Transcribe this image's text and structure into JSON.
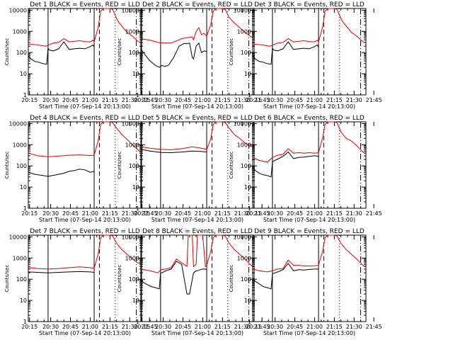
{
  "figure": {
    "ylabel": "Counts/sec",
    "xlabel_prefix": "Start Time (",
    "start_time": "07-Sep-14 20:13:00",
    "xlabel_suffix": ")",
    "x_ticks": [
      "20:15",
      "20:30",
      "20:45",
      "21:00",
      "21:15",
      "21:30",
      "21:45"
    ],
    "y_ticks": [
      "1",
      "10",
      "100",
      "1000",
      "10000"
    ],
    "colors": {
      "events": "#000000",
      "lld": "#e00000"
    }
  },
  "chart_data": [
    {
      "type": "line",
      "title": "Det  1  BLACK = Events, RED = LLD",
      "xlim": [
        13,
        99
      ],
      "ylim": [
        1,
        12000
      ],
      "yscale": "log",
      "xlabel": "Start Time (07-Sep-14 20:13:00)",
      "ylabel": "Counts/sec",
      "vlines": {
        "solid": [
          28,
          63
        ],
        "dashed": [
          67
        ],
        "dotted": [
          79
        ],
        "dashdot": [
          95
        ]
      },
      "series": [
        {
          "name": "LLD",
          "color": "red",
          "x": [
            13,
            20,
            26,
            28,
            32,
            36,
            40,
            44,
            48,
            52,
            56,
            60,
            62,
            63,
            66,
            68,
            70,
            75,
            77,
            80,
            82,
            85,
            88,
            92,
            96,
            98
          ],
          "y": [
            250,
            230,
            200,
            220,
            280,
            300,
            450,
            320,
            340,
            360,
            330,
            320,
            380,
            320,
            1500,
            9000,
            12000,
            12000,
            11000,
            4000,
            2500,
            1500,
            900,
            600,
            350,
            300
          ]
        },
        {
          "name": "Events",
          "color": "black",
          "x": [
            13,
            15,
            18,
            21,
            24,
            27,
            28,
            29,
            32,
            36,
            40,
            44,
            48,
            52,
            56,
            58,
            60,
            62,
            63
          ],
          "y": [
            70,
            50,
            38,
            35,
            30,
            28,
            160,
            130,
            120,
            150,
            320,
            140,
            150,
            160,
            150,
            170,
            190,
            230,
            180
          ]
        }
      ]
    },
    {
      "type": "line",
      "title": "Det  2  BLACK = Events, RED = LLD",
      "xlim": [
        13,
        99
      ],
      "ylim": [
        1,
        12000
      ],
      "yscale": "log",
      "xlabel": "Start Time (07-Sep-14 20:13:00)",
      "ylabel": "Counts/sec",
      "vlines": {
        "solid": [
          28,
          63
        ],
        "dashed": [
          67
        ],
        "dotted": [
          79
        ],
        "dashdot": [
          95
        ]
      },
      "series": [
        {
          "name": "LLD",
          "color": "red",
          "x": [
            13,
            20,
            26,
            30,
            36,
            40,
            44,
            48,
            52,
            53,
            55,
            57,
            59,
            61,
            63,
            66,
            68,
            70,
            74,
            77,
            80,
            84,
            88,
            92,
            96,
            98
          ],
          "y": [
            450,
            380,
            300,
            280,
            280,
            350,
            450,
            500,
            550,
            400,
            1000,
            1500,
            700,
            800,
            600,
            2000,
            9000,
            12000,
            12000,
            11000,
            4500,
            2500,
            1500,
            900,
            600,
            500
          ]
        },
        {
          "name": "Events",
          "color": "black",
          "x": [
            13,
            16,
            20,
            24,
            27,
            28,
            29,
            31,
            34,
            38,
            42,
            46,
            48,
            50,
            52,
            53,
            55,
            57,
            59,
            61,
            63
          ],
          "y": [
            150,
            80,
            40,
            25,
            20,
            22,
            25,
            22,
            25,
            60,
            200,
            270,
            260,
            280,
            60,
            50,
            200,
            280,
            100,
            120,
            110
          ]
        }
      ]
    },
    {
      "type": "line",
      "title": "Det  3  BLACK = Events, RED = LLD",
      "xlim": [
        13,
        99
      ],
      "ylim": [
        1,
        12000
      ],
      "yscale": "log",
      "xlabel": "Start Time (07-Sep-14 20:13:00)",
      "ylabel": "Counts/sec",
      "vlines": {
        "solid": [
          28,
          63
        ],
        "dashed": [
          67
        ],
        "dotted": [
          79
        ],
        "dashdot": [
          95
        ]
      },
      "series": [
        {
          "name": "LLD",
          "color": "red",
          "x": [
            13,
            20,
            26,
            28,
            32,
            36,
            40,
            44,
            48,
            52,
            56,
            60,
            62,
            63,
            66,
            68,
            70,
            75,
            77,
            80,
            82,
            85,
            88,
            92,
            96,
            98
          ],
          "y": [
            250,
            230,
            200,
            220,
            280,
            300,
            450,
            320,
            340,
            360,
            330,
            320,
            380,
            320,
            1500,
            9000,
            12000,
            12000,
            11000,
            4000,
            2500,
            1500,
            900,
            600,
            350,
            300
          ]
        },
        {
          "name": "Events",
          "color": "black",
          "x": [
            13,
            15,
            18,
            21,
            24,
            27,
            28,
            29,
            32,
            36,
            40,
            44,
            48,
            52,
            56,
            58,
            60,
            62,
            63
          ],
          "y": [
            70,
            50,
            38,
            35,
            30,
            28,
            160,
            130,
            120,
            150,
            320,
            140,
            150,
            160,
            150,
            170,
            190,
            230,
            180
          ]
        }
      ]
    },
    {
      "type": "line",
      "title": "Det  4  BLACK = Events, RED = LLD",
      "xlim": [
        13,
        99
      ],
      "ylim": [
        1,
        12000
      ],
      "yscale": "log",
      "xlabel": "Start Time (07-Sep-14 20:13:00)",
      "ylabel": "Counts/sec",
      "vlines": {
        "solid": [
          28,
          63
        ],
        "dashed": [
          67
        ],
        "dotted": [
          79
        ],
        "dashdot": [
          95
        ]
      },
      "series": [
        {
          "name": "LLD",
          "color": "red",
          "x": [
            13,
            20,
            28,
            36,
            44,
            52,
            60,
            63,
            66,
            68,
            70,
            75,
            77,
            80,
            84,
            88,
            92,
            96,
            98
          ],
          "y": [
            400,
            300,
            270,
            290,
            320,
            330,
            310,
            320,
            1500,
            9000,
            12000,
            12000,
            11000,
            6000,
            3000,
            1800,
            1000,
            600,
            450
          ]
        },
        {
          "name": "Events",
          "color": "black",
          "x": [
            13,
            18,
            24,
            28,
            32,
            36,
            40,
            44,
            48,
            52,
            56,
            60,
            63
          ],
          "y": [
            50,
            40,
            35,
            32,
            36,
            40,
            45,
            55,
            60,
            70,
            65,
            50,
            55
          ]
        }
      ]
    },
    {
      "type": "line",
      "title": "Det  5  BLACK = Events, RED = LLD",
      "xlim": [
        13,
        99
      ],
      "ylim": [
        1,
        12000
      ],
      "yscale": "log",
      "xlabel": "Start Time (07-Sep-14 20:13:00)",
      "ylabel": "Counts/sec",
      "vlines": {
        "solid": [
          28,
          63
        ],
        "dashed": [
          67
        ],
        "dotted": [
          79
        ],
        "dashdot": [
          95
        ]
      },
      "series": [
        {
          "name": "LLD",
          "color": "red",
          "x": [
            13,
            20,
            28,
            36,
            44,
            52,
            58,
            63,
            66,
            68,
            70,
            75,
            77,
            80,
            84,
            88,
            92,
            96,
            98
          ],
          "y": [
            800,
            680,
            600,
            580,
            650,
            800,
            700,
            600,
            1800,
            9000,
            12000,
            12000,
            11000,
            6000,
            3000,
            2000,
            1200,
            900,
            800
          ]
        },
        {
          "name": "Events",
          "color": "black",
          "x": [
            13,
            20,
            28,
            36,
            44,
            52,
            58,
            63
          ],
          "y": [
            600,
            500,
            430,
            420,
            450,
            500,
            480,
            450
          ]
        }
      ]
    },
    {
      "type": "line",
      "title": "Det  6  BLACK = Events, RED = LLD",
      "xlim": [
        13,
        99
      ],
      "ylim": [
        1,
        12000
      ],
      "yscale": "log",
      "xlabel": "Start Time (07-Sep-14 20:13:00)",
      "ylabel": "Counts/sec",
      "vlines": {
        "solid": [
          28,
          63
        ],
        "dashed": [
          67
        ],
        "dotted": [
          79
        ],
        "dashdot": [
          95
        ]
      },
      "series": [
        {
          "name": "LLD",
          "color": "red",
          "x": [
            13,
            18,
            24,
            28,
            32,
            36,
            40,
            44,
            48,
            52,
            56,
            60,
            63,
            66,
            68,
            70,
            75,
            77,
            80,
            84,
            88,
            92,
            96,
            98
          ],
          "y": [
            250,
            180,
            150,
            250,
            320,
            350,
            650,
            400,
            420,
            400,
            420,
            400,
            420,
            2000,
            9000,
            12000,
            12000,
            11000,
            4000,
            2000,
            1500,
            900,
            500,
            400
          ]
        },
        {
          "name": "Events",
          "color": "black",
          "x": [
            13,
            15,
            18,
            21,
            24,
            27,
            28,
            29,
            32,
            36,
            40,
            44,
            48,
            52,
            56,
            60,
            63
          ],
          "y": [
            90,
            60,
            45,
            38,
            35,
            30,
            150,
            170,
            210,
            280,
            450,
            220,
            250,
            260,
            280,
            300,
            280
          ]
        }
      ]
    },
    {
      "type": "line",
      "title": "Det  7  BLACK = Events, RED = LLD",
      "xlim": [
        13,
        99
      ],
      "ylim": [
        1,
        12000
      ],
      "yscale": "log",
      "xlabel": "Start Time (07-Sep-14 20:13:00)",
      "ylabel": "Counts/sec",
      "vlines": {
        "solid": [
          28,
          63
        ],
        "dashed": [
          67
        ],
        "dotted": [
          79
        ],
        "dashdot": [
          95
        ]
      },
      "series": [
        {
          "name": "LLD",
          "color": "red",
          "x": [
            13,
            20,
            28,
            36,
            44,
            52,
            60,
            63,
            66,
            68,
            70,
            75,
            77,
            80,
            84,
            88,
            92,
            96,
            98
          ],
          "y": [
            350,
            320,
            300,
            320,
            350,
            380,
            350,
            330,
            1500,
            9000,
            12000,
            12000,
            11000,
            5000,
            2500,
            1500,
            900,
            600,
            550
          ]
        },
        {
          "name": "Events",
          "color": "black",
          "x": [
            13,
            20,
            28,
            36,
            44,
            52,
            60,
            63
          ],
          "y": [
            220,
            210,
            200,
            210,
            220,
            230,
            220,
            210
          ]
        }
      ]
    },
    {
      "type": "line",
      "title": "Det  8  BLACK = Events, RED = LLD",
      "xlim": [
        13,
        99
      ],
      "ylim": [
        1,
        12000
      ],
      "yscale": "log",
      "xlabel": "Start Time (07-Sep-14 20:13:00)",
      "ylabel": "Counts/sec",
      "vlines": {
        "solid": [
          28,
          63
        ],
        "dashed": [
          67
        ],
        "dotted": [
          79
        ],
        "dashdot": [
          95
        ]
      },
      "series": [
        {
          "name": "LLD",
          "color": "red",
          "x": [
            13,
            20,
            26,
            28,
            32,
            36,
            40,
            44,
            48,
            49,
            50,
            52,
            53,
            55,
            56,
            58,
            60,
            62,
            63,
            66,
            68,
            70,
            75,
            77,
            80,
            84,
            88,
            92,
            96,
            98
          ],
          "y": [
            300,
            250,
            200,
            280,
            300,
            350,
            900,
            600,
            400,
            12000,
            12000,
            12000,
            400,
            500,
            12000,
            12000,
            12000,
            400,
            450,
            2000,
            9000,
            12000,
            12000,
            11000,
            5000,
            2500,
            1500,
            900,
            500,
            400
          ]
        },
        {
          "name": "Events",
          "color": "black",
          "x": [
            13,
            15,
            18,
            21,
            24,
            27,
            28,
            29,
            32,
            36,
            40,
            44,
            48,
            50,
            53,
            55,
            56,
            58,
            60,
            62,
            63
          ],
          "y": [
            100,
            70,
            55,
            45,
            40,
            35,
            200,
            200,
            250,
            300,
            700,
            500,
            20,
            20,
            200,
            250,
            250,
            280,
            300,
            300,
            280
          ]
        }
      ]
    },
    {
      "type": "line",
      "title": "Det  9  BLACK = Events, RED = LLD",
      "xlim": [
        13,
        99
      ],
      "ylim": [
        1,
        12000
      ],
      "yscale": "log",
      "xlabel": "Start Time (07-Sep-14 20:13:00)",
      "ylabel": "Counts/sec",
      "vlines": {
        "solid": [
          28,
          63
        ],
        "dashed": [
          67
        ],
        "dotted": [
          79
        ],
        "dashdot": [
          95
        ]
      },
      "series": [
        {
          "name": "LLD",
          "color": "red",
          "x": [
            13,
            18,
            24,
            28,
            32,
            36,
            40,
            44,
            48,
            52,
            56,
            60,
            63,
            66,
            68,
            70,
            75,
            77,
            80,
            84,
            88,
            92,
            96,
            98
          ],
          "y": [
            300,
            250,
            220,
            250,
            300,
            320,
            800,
            450,
            450,
            420,
            420,
            430,
            450,
            2000,
            9000,
            12000,
            12000,
            11000,
            5000,
            2500,
            1500,
            900,
            500,
            400
          ]
        },
        {
          "name": "Events",
          "color": "black",
          "x": [
            13,
            15,
            18,
            21,
            24,
            27,
            28,
            29,
            32,
            36,
            40,
            44,
            48,
            52,
            56,
            60,
            63
          ],
          "y": [
            120,
            80,
            60,
            45,
            40,
            35,
            180,
            190,
            220,
            280,
            550,
            250,
            280,
            270,
            290,
            300,
            300
          ]
        }
      ]
    }
  ]
}
